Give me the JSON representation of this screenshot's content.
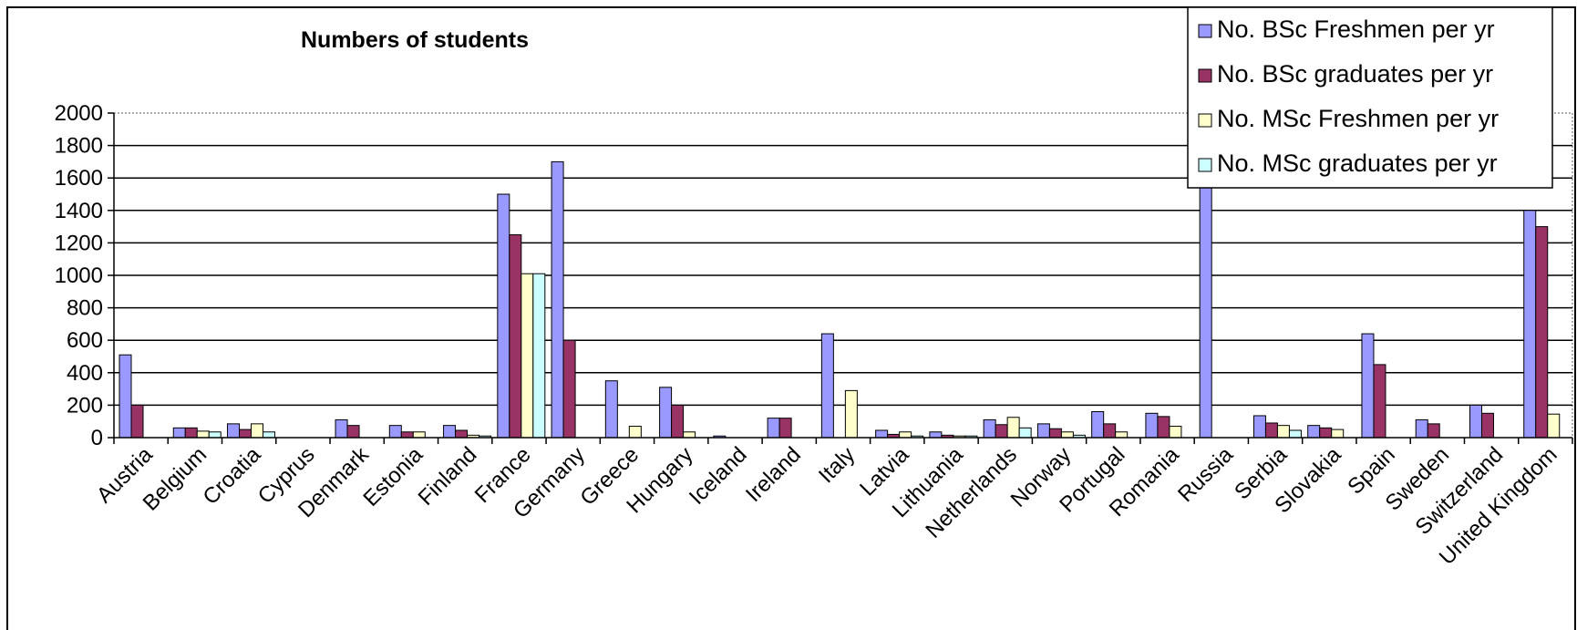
{
  "chart_data": {
    "type": "bar",
    "title": "Numbers of students",
    "xlabel": "",
    "ylabel": "",
    "ylim": [
      0,
      2000
    ],
    "yticks": [
      0,
      200,
      400,
      600,
      800,
      1000,
      1200,
      1400,
      1600,
      1800,
      2000
    ],
    "grid": true,
    "legend_position": "top-right",
    "categories": [
      "Austria",
      "Belgium",
      "Croatia",
      "Cyprus",
      "Denmark",
      "Estonia",
      "Finland",
      "France",
      "Germany",
      "Greece",
      "Hungary",
      "Iceland",
      "Ireland",
      "Italy",
      "Latvia",
      "Lithuania",
      "Netherlands",
      "Norway",
      "Portugal",
      "Romania",
      "Russia",
      "Serbia",
      "Slovakia",
      "Spain",
      "Sweden",
      "Switzerland",
      "United Kingdom"
    ],
    "series": [
      {
        "name": "No. BSc Freshmen per yr",
        "color": "#9999ff",
        "values": [
          510,
          60,
          85,
          0,
          110,
          75,
          75,
          1500,
          1700,
          350,
          310,
          10,
          120,
          640,
          45,
          35,
          110,
          85,
          160,
          150,
          1800,
          135,
          75,
          640,
          110,
          200,
          1400
        ]
      },
      {
        "name": "No. BSc graduates per yr",
        "color": "#993366",
        "values": [
          200,
          60,
          50,
          0,
          75,
          35,
          45,
          1250,
          600,
          0,
          200,
          0,
          120,
          0,
          20,
          15,
          80,
          55,
          85,
          130,
          0,
          90,
          60,
          450,
          85,
          150,
          1300
        ]
      },
      {
        "name": "No. MSc Freshmen per yr",
        "color": "#ffffcc",
        "values": [
          0,
          40,
          85,
          0,
          0,
          35,
          15,
          1010,
          0,
          70,
          35,
          0,
          0,
          290,
          35,
          10,
          125,
          35,
          35,
          70,
          0,
          75,
          50,
          0,
          0,
          0,
          145
        ]
      },
      {
        "name": "No. MSc graduates per yr",
        "color": "#ccffff",
        "values": [
          0,
          35,
          35,
          0,
          0,
          0,
          10,
          1010,
          0,
          0,
          0,
          0,
          0,
          0,
          10,
          10,
          60,
          15,
          0,
          0,
          0,
          45,
          0,
          0,
          0,
          0,
          0
        ]
      }
    ]
  }
}
